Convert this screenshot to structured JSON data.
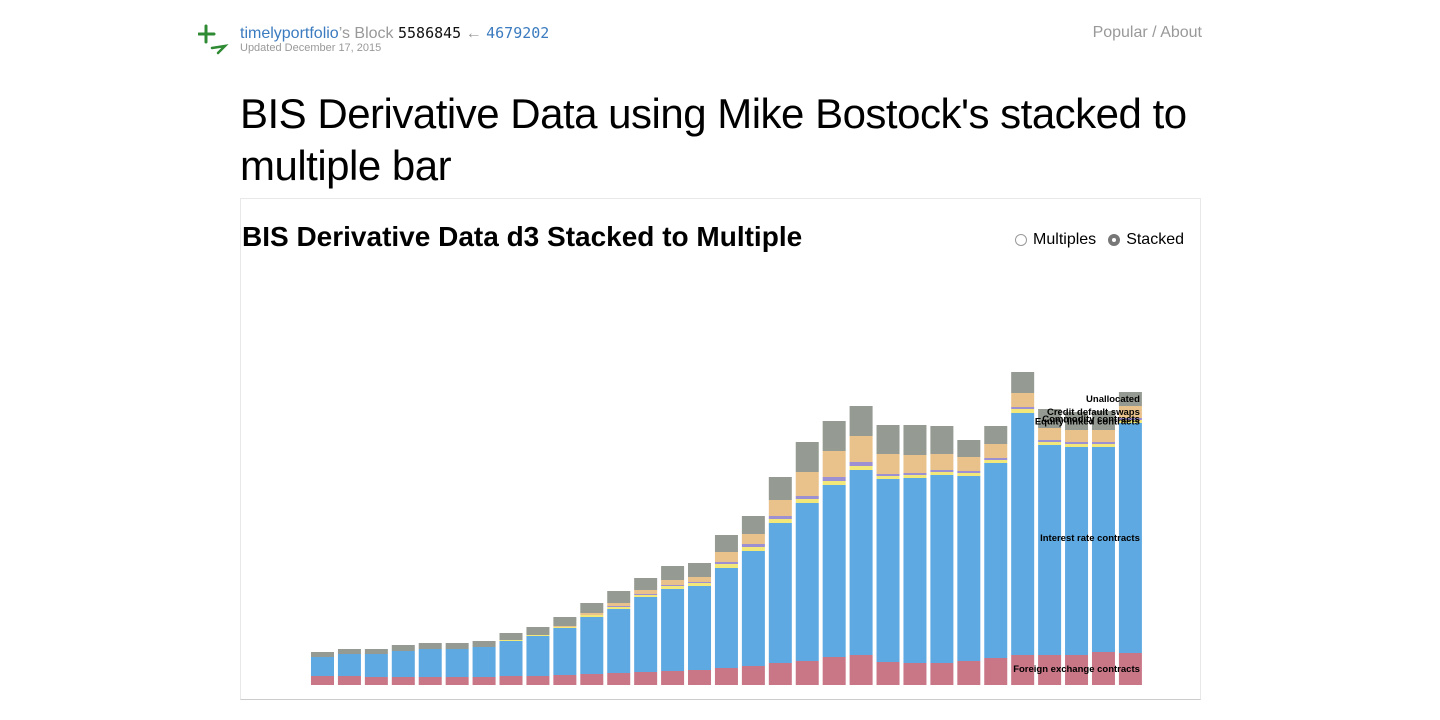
{
  "header": {
    "user": "timelyportfolio",
    "block_suffix": "’s Block",
    "block_id": "5586845",
    "arrow": "←",
    "parent_id": "4679202",
    "updated": "Updated December 17, 2015",
    "nav_popular": "Popular",
    "nav_sep": "/",
    "nav_about": "About"
  },
  "title": "BIS Derivative Data using Mike Bostock's stacked to multiple bar",
  "chart": {
    "heading": "BIS Derivative Data d3 Stacked to Multiple",
    "options": [
      "Multiples",
      "Stacked"
    ],
    "selected": "Stacked"
  },
  "colors": {
    "fx": "#c97687",
    "ir": "#5ea9e2",
    "eq": "#f2e87a",
    "cm": "#9c90d2",
    "cds": "#e9c18b",
    "un": "#959b92",
    "link": "#3b7bbf",
    "logo": "#2f8a34"
  },
  "chart_data": {
    "type": "bar",
    "stacked": true,
    "series": [
      {
        "name": "Foreign exchange contracts",
        "key": "fx",
        "values": [
          9,
          9,
          8,
          8,
          8,
          8,
          8,
          9,
          9,
          10,
          11,
          12,
          13,
          14,
          15,
          17,
          19,
          22,
          24,
          28,
          30,
          23,
          22,
          22,
          24,
          27,
          30,
          30,
          30,
          33,
          32
        ]
      },
      {
        "name": "Interest rate contracts",
        "key": "ir",
        "values": [
          19,
          22,
          23,
          26,
          28,
          28,
          30,
          35,
          40,
          47,
          57,
          64,
          75,
          82,
          84,
          100,
          115,
          140,
          158,
          172,
          185,
          183,
          185,
          188,
          185,
          195,
          242,
          210,
          208,
          205,
          230
        ]
      },
      {
        "name": "Equity-linked contracts",
        "key": "eq",
        "values": [
          0,
          0,
          0,
          0,
          0,
          0,
          0,
          1,
          1,
          1,
          2,
          2,
          2,
          3,
          3,
          4,
          4,
          4,
          4,
          4,
          4,
          3,
          3,
          3,
          3,
          3,
          4,
          3,
          3,
          3,
          3
        ]
      },
      {
        "name": "Commodity contracts",
        "key": "cm",
        "values": [
          0,
          0,
          0,
          0,
          0,
          0,
          0,
          0,
          0,
          0,
          0,
          1,
          1,
          1,
          1,
          2,
          3,
          3,
          3,
          4,
          4,
          2,
          2,
          2,
          2,
          2,
          2,
          2,
          2,
          2,
          2
        ]
      },
      {
        "name": "Credit default swaps",
        "key": "cds",
        "values": [
          0,
          0,
          0,
          0,
          0,
          0,
          0,
          0,
          0,
          1,
          2,
          3,
          4,
          5,
          5,
          10,
          10,
          16,
          24,
          26,
          26,
          20,
          18,
          16,
          14,
          14,
          14,
          12,
          12,
          12,
          12
        ]
      },
      {
        "name": "Unallocated",
        "key": "un",
        "values": [
          5,
          5,
          5,
          6,
          6,
          6,
          6,
          7,
          8,
          9,
          10,
          12,
          12,
          14,
          14,
          17,
          18,
          23,
          30,
          30,
          30,
          29,
          30,
          28,
          17,
          18,
          21,
          19,
          18,
          19,
          14
        ]
      }
    ],
    "label_position": "right"
  }
}
